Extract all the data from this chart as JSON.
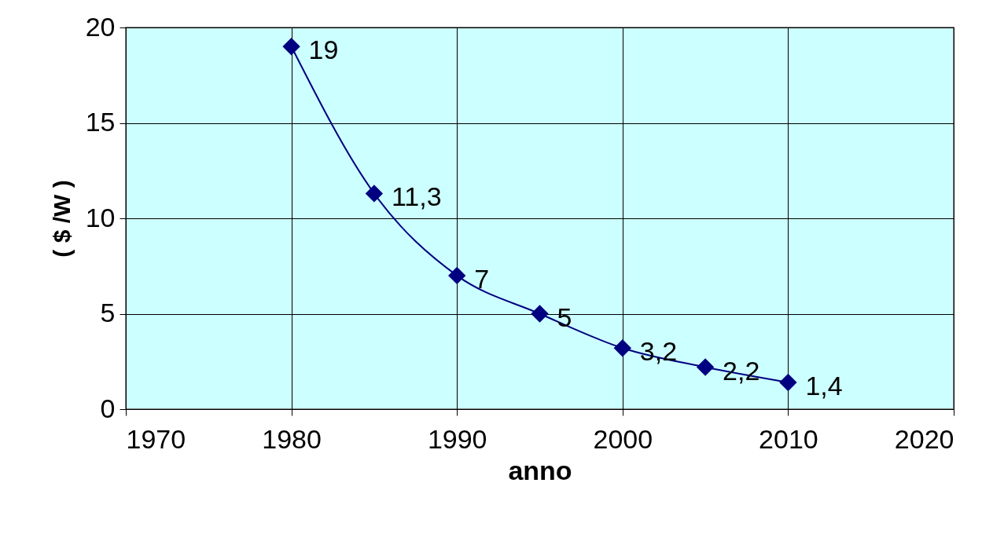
{
  "chart_data": {
    "type": "line",
    "xlabel": "anno",
    "ylabel": "( $ /W )",
    "x": [
      1980,
      1985,
      1990,
      1995,
      2000,
      2005,
      2010
    ],
    "series": [
      {
        "color": "#000080",
        "values": [
          19,
          11.3,
          7,
          5,
          3.2,
          2.2,
          1.4
        ],
        "value_labels": [
          "19",
          "11,3",
          "7",
          "5",
          "3,2",
          "2,2",
          "1,4"
        ]
      }
    ],
    "xlim": [
      1970,
      2020
    ],
    "xticks": [
      1970,
      1980,
      1990,
      2000,
      2010,
      2020
    ],
    "ylim": [
      0,
      20
    ],
    "yticks": [
      0,
      5,
      10,
      15,
      20
    ],
    "grid": true,
    "marker": "diamond",
    "line_style": "solid"
  }
}
